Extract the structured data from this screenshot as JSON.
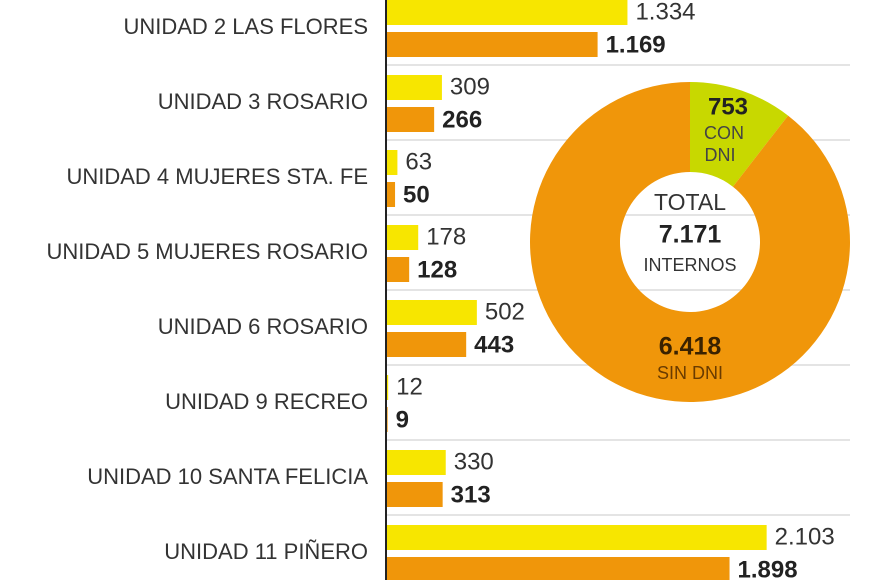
{
  "chart_data": {
    "type": "bar",
    "orientation": "horizontal",
    "categories": [
      "UNIDAD 2 LAS FLORES",
      "UNIDAD 3 ROSARIO",
      "UNIDAD 4 MUJERES STA. FE",
      "UNIDAD 5 MUJERES ROSARIO",
      "UNIDAD 6 ROSARIO",
      "UNIDAD 9 RECREO",
      "UNIDAD 10 SANTA FELICIA",
      "UNIDAD 11 PIÑERO"
    ],
    "series": [
      {
        "name": "total",
        "color": "#f7e600",
        "values": [
          1334,
          309,
          63,
          178,
          502,
          12,
          330,
          2103
        ],
        "labels": [
          "1.334",
          "309",
          "63",
          "178",
          "502",
          "12",
          "330",
          "2.103"
        ]
      },
      {
        "name": "sin DNI",
        "color": "#f0960a",
        "values": [
          1169,
          266,
          50,
          128,
          443,
          9,
          313,
          1898
        ],
        "labels": [
          "1.169",
          "266",
          "50",
          "128",
          "443",
          "9",
          "313",
          "1.898"
        ]
      }
    ],
    "donut": {
      "type": "pie",
      "total_label": "TOTAL",
      "total_value": "7.171",
      "total_unit": "INTERNOS",
      "slices": [
        {
          "value": 753,
          "label_value": "753",
          "label_line1": "CON",
          "label_line2": "DNI",
          "color": "#c8d800"
        },
        {
          "value": 6418,
          "label_value": "6.418",
          "label_line1": "SIN DNI",
          "color": "#f0960a"
        }
      ]
    }
  }
}
